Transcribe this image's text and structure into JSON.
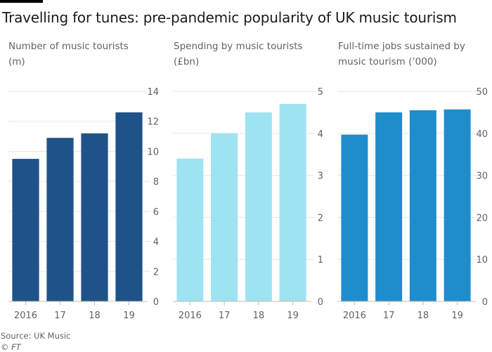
{
  "title": "Travelling for tunes: pre-pandemic popularity of UK music tourism",
  "source": "Source: UK Music",
  "copyright_symbol": "©",
  "copyright_brand": "FT",
  "chart_data": [
    {
      "type": "bar",
      "title": "Number of music tourists (m)",
      "subtitle_lines": [
        "Number of music tourists",
        "(m)"
      ],
      "categories": [
        "2016",
        "17",
        "18",
        "19"
      ],
      "values": [
        9.5,
        10.9,
        11.2,
        12.6
      ],
      "ylim": [
        0,
        14
      ],
      "yticks": [
        0,
        2,
        4,
        6,
        8,
        10,
        12,
        14
      ],
      "xlabel": "",
      "ylabel": "",
      "y_axis_side": "right",
      "grid": true,
      "color": "#1f5289"
    },
    {
      "type": "bar",
      "title": "Spending by music tourists (£bn)",
      "subtitle_lines": [
        "Spending by music tourists",
        "(£bn)"
      ],
      "categories": [
        "2016",
        "17",
        "18",
        "19"
      ],
      "values": [
        3.4,
        4.0,
        4.5,
        4.7
      ],
      "ylim": [
        0,
        5
      ],
      "yticks": [
        0,
        1,
        2,
        3,
        4,
        5
      ],
      "xlabel": "",
      "ylabel": "",
      "y_axis_side": "right",
      "grid": true,
      "color": "#9ee3f2"
    },
    {
      "type": "bar",
      "title": "Full-time jobs sustained by music tourism ('000)",
      "subtitle_lines": [
        "Full-time jobs sustained by",
        "music tourism (’000)"
      ],
      "categories": [
        "2016",
        "17",
        "18",
        "19"
      ],
      "values": [
        39.7,
        45.0,
        45.5,
        45.7
      ],
      "ylim": [
        0,
        50
      ],
      "yticks": [
        0,
        10,
        20,
        30,
        40,
        50
      ],
      "xlabel": "",
      "ylabel": "",
      "y_axis_side": "right",
      "grid": true,
      "color": "#1f8dcc"
    }
  ]
}
